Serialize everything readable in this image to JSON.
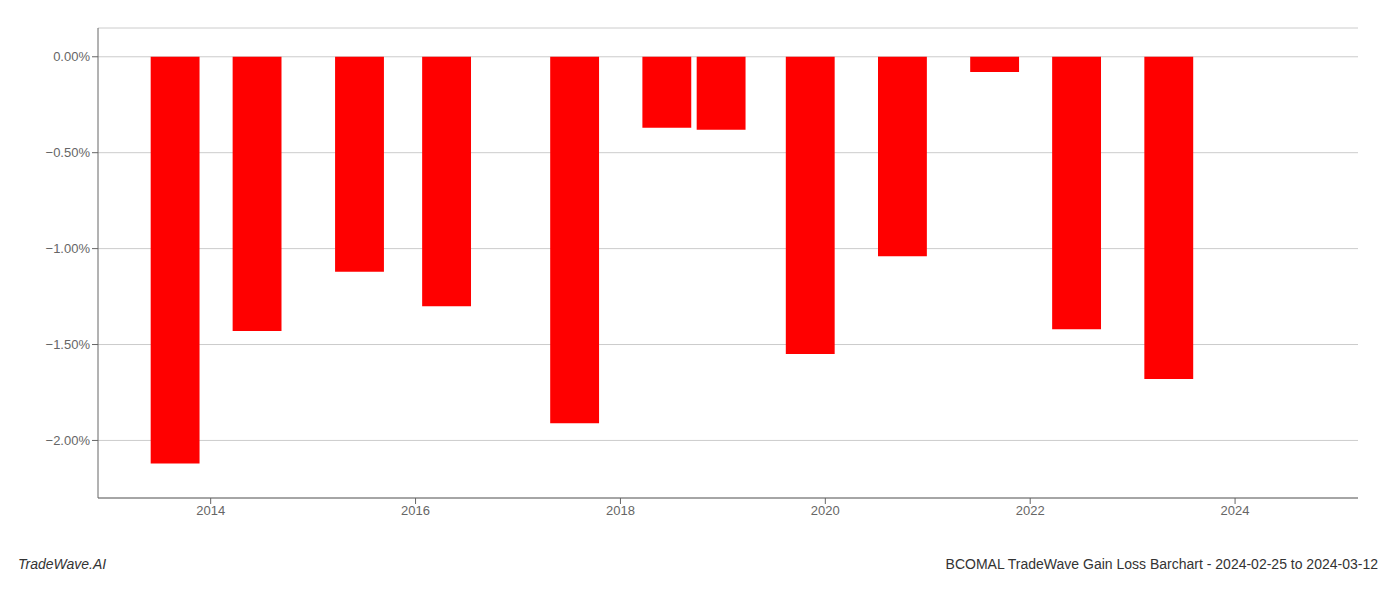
{
  "chart_data": {
    "type": "bar",
    "title": "BCOMAL TradeWave Gain Loss Barchart - 2024-02-25 to 2024-03-12",
    "annotations": [
      "TradeWave.AI"
    ],
    "x": [
      2013.65,
      2014.45,
      2015.45,
      2016.3,
      2017.55,
      2018.45,
      2018.98,
      2019.85,
      2020.75,
      2021.65,
      2022.45,
      2023.35
    ],
    "values": [
      -2.12,
      -1.43,
      -1.12,
      -1.3,
      -1.91,
      -0.37,
      -0.38,
      -1.55,
      -1.04,
      -0.08,
      -1.42,
      -1.68
    ],
    "color": "#ff0000",
    "xlim": [
      2012.9,
      2025.2
    ],
    "xticks": [
      2014,
      2016,
      2018,
      2020,
      2022,
      2024
    ],
    "ylim": [
      -2.3,
      0.15
    ],
    "yticks": [
      {
        "value": 0.0,
        "label": "0.00%"
      },
      {
        "value": -0.5,
        "label": "−0.50%"
      },
      {
        "value": -1.0,
        "label": "−1.00%"
      },
      {
        "value": -1.5,
        "label": "−1.50%"
      },
      {
        "value": -2.0,
        "label": "−2.00%"
      }
    ],
    "grid": true
  }
}
